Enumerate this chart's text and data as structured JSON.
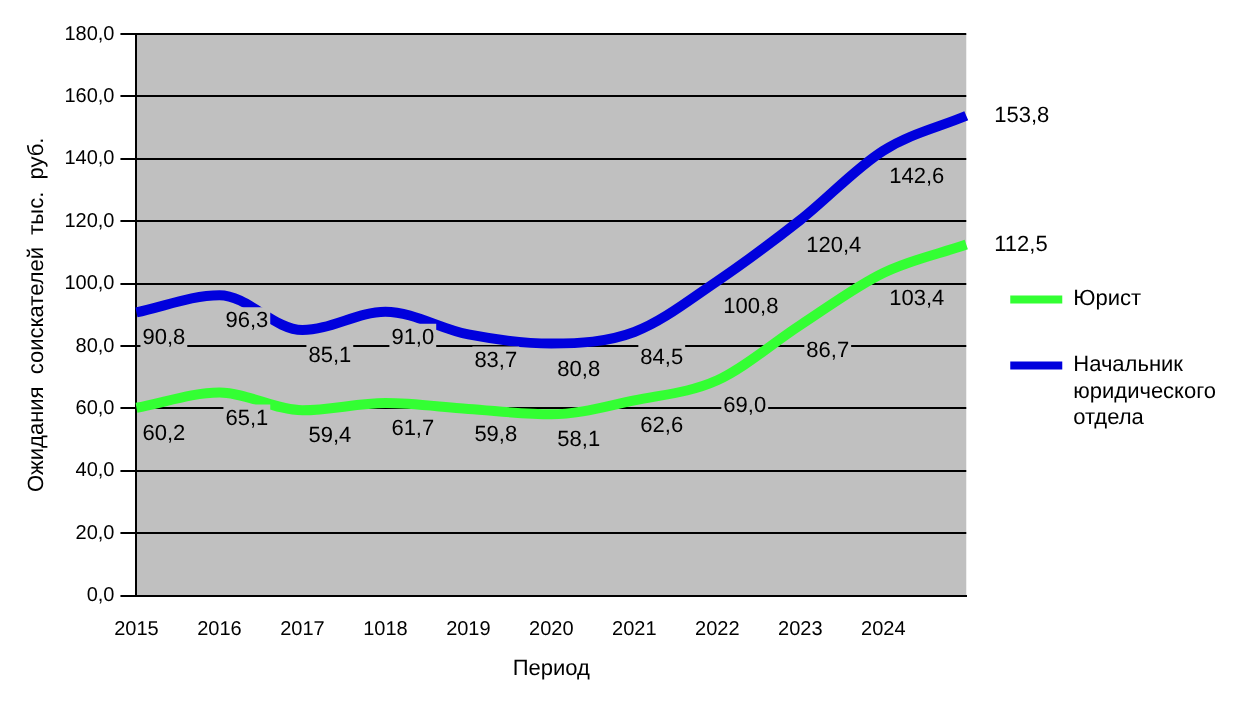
{
  "chart_data": {
    "type": "line",
    "xlabel": "Период",
    "ylabel": "Ожидания  соискателей  тыс.  руб.",
    "categories": [
      "2015",
      "2016",
      "2017",
      "1018",
      "2019",
      "2020",
      "2021",
      "2022",
      "2023",
      "2024",
      null
    ],
    "series": [
      {
        "name": "Юрист",
        "color": "#33ff33",
        "values": [
          60.2,
          65.1,
          59.4,
          61.7,
          59.8,
          58.1,
          62.6,
          69.0,
          86.7,
          103.4,
          112.5
        ],
        "value_labels": [
          "60,2",
          "65,1",
          "59,4",
          "61,7",
          "59,8",
          "58,1",
          "62,6",
          "69,0",
          "86,7",
          "103,4",
          "112,5"
        ]
      },
      {
        "name": "Начальник юридического отдела",
        "color": "#0000dd",
        "values": [
          90.8,
          96.3,
          85.1,
          91.0,
          83.7,
          80.8,
          84.5,
          100.8,
          120.4,
          142.6,
          153.8
        ],
        "value_labels": [
          "90,8",
          "96,3",
          "85,1",
          "91,0",
          "83,7",
          "80,8",
          "84,5",
          "100,8",
          "120,4",
          "142,6",
          "153,8"
        ]
      }
    ],
    "ylim": [
      0,
      180
    ],
    "yticks": [
      {
        "value": 0,
        "label": "0,0"
      },
      {
        "value": 20,
        "label": "20,0"
      },
      {
        "value": 40,
        "label": "40,0"
      },
      {
        "value": 60,
        "label": "60,0"
      },
      {
        "value": 80,
        "label": "80,0"
      },
      {
        "value": 100,
        "label": "100,0"
      },
      {
        "value": 120,
        "label": "120,0"
      },
      {
        "value": 140,
        "label": "140,0"
      },
      {
        "value": 160,
        "label": "160,0"
      },
      {
        "value": 180,
        "label": "180,0"
      }
    ],
    "grid": "y",
    "legend": "right",
    "marker": "none",
    "line_style": "solid"
  }
}
